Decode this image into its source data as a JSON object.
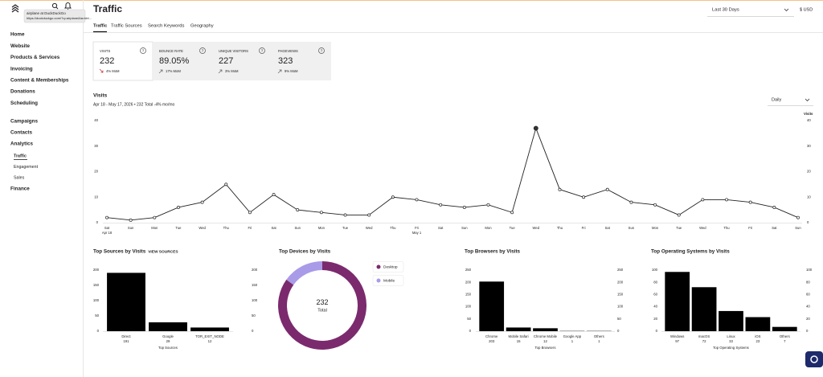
{
  "browser_tooltip": {
    "title": "airplane at DuckDuckGo",
    "url": "https://duckduckgo.com/?q=airplane&ia=kbt..."
  },
  "nav": {
    "main": [
      "Home",
      "Website",
      "Products & Services",
      "Invoicing",
      "Content & Memberships",
      "Donations",
      "Scheduling"
    ],
    "marketing": [
      "Campaigns",
      "Contacts",
      "Analytics"
    ],
    "analytics_sub": [
      "Traffic",
      "Engagement",
      "Sales"
    ],
    "analytics_active": 0,
    "footer": [
      "Finance"
    ]
  },
  "header": {
    "title": "Traffic",
    "tabs": [
      "Traffic",
      "Traffic Sources",
      "Search Keywords",
      "Geography"
    ],
    "active_tab": 0,
    "date_range": "Last 30 Days",
    "currency": "$ USD"
  },
  "metrics": [
    {
      "label": "VISITS",
      "value": "232",
      "change": "4% MoM",
      "trend": "down"
    },
    {
      "label": "BOUNCE RATE",
      "value": "89.05%",
      "change": "17% MoM",
      "trend": "up"
    },
    {
      "label": "UNIQUE VISITORS",
      "value": "227",
      "change": "3% MoM",
      "trend": "up"
    },
    {
      "label": "PAGEVIEWS",
      "value": "323",
      "change": "9% MoM",
      "trend": "up"
    }
  ],
  "chart_data": [
    {
      "type": "line",
      "title": "Visits",
      "subtitle": "Apr 18 - May 17, 2026 • 232 Total",
      "change": "-4% mo/mo",
      "interval": "Daily",
      "y2label": "Visits",
      "color": "#222222",
      "highlight_index": 18,
      "categories": [
        "Sat",
        "Sun",
        "Mon",
        "Tue",
        "Wed",
        "Thu",
        "Fri",
        "Sat",
        "Sun",
        "Mon",
        "Tue",
        "Wed",
        "Thu",
        "Fri",
        "Sat",
        "Sun",
        "Mon",
        "Tue",
        "Wed",
        "Thu",
        "Fri",
        "Sat",
        "Sun",
        "Mon",
        "Tue",
        "Wed",
        "Thu",
        "Fri",
        "Sat",
        "Sun"
      ],
      "category_dates": [
        "Apr 18",
        null,
        null,
        null,
        null,
        null,
        null,
        null,
        null,
        null,
        null,
        null,
        null,
        "May 1",
        null,
        null,
        null,
        null,
        null,
        null,
        null,
        null,
        null,
        null,
        null,
        null,
        null,
        null,
        null,
        null
      ],
      "values": [
        2,
        1,
        2,
        6,
        8,
        15,
        4,
        11,
        5,
        4,
        3,
        3,
        10,
        9,
        7,
        6,
        7,
        4,
        37,
        13,
        10,
        13,
        8,
        7,
        3,
        9,
        9,
        8,
        6,
        2
      ],
      "ylim": [
        0,
        40
      ],
      "yticks": [
        0,
        10,
        20,
        30,
        40
      ],
      "y2lim": [
        0,
        40
      ],
      "y2ticks": [
        0,
        10,
        20,
        30,
        40
      ],
      "grid": false
    },
    {
      "type": "bar",
      "title": "Top Sources by Visits",
      "link": "VIEW SOURCES",
      "xlabel": "Top Sources",
      "color": "#000000",
      "categories": [
        "Direct",
        "Google",
        "TOR_EXIT_NODE"
      ],
      "values": [
        191,
        29,
        12
      ],
      "ylim": [
        0,
        200
      ],
      "yticks": [
        0,
        50,
        100,
        150,
        200
      ],
      "y2lim": [
        0,
        200
      ],
      "y2ticks": [
        0,
        50,
        100,
        150,
        200
      ],
      "grid": false
    },
    {
      "type": "pie",
      "title": "Top Devices by Visits",
      "donut": true,
      "total": 232,
      "total_label": "Total",
      "legend": "right",
      "categories": [
        "Desktop",
        "Mobile"
      ],
      "values": [
        197,
        35
      ],
      "colors": [
        "#7b2a6e",
        "#a99be8"
      ]
    },
    {
      "type": "bar",
      "title": "Top Browsers by Visits",
      "xlabel": "Top Browsers",
      "color": "#000000",
      "categories": [
        "Chrome",
        "Mobile Safari",
        "Chrome Mobile",
        "Google App",
        "Others"
      ],
      "values": [
        203,
        15,
        12,
        1,
        1
      ],
      "ylim": [
        0,
        250
      ],
      "yticks": [
        0,
        50,
        100,
        150,
        200,
        250
      ],
      "y2lim": [
        0,
        250
      ],
      "y2ticks": [
        0,
        50,
        100,
        150,
        200,
        250
      ],
      "grid": false
    },
    {
      "type": "bar",
      "title": "Top Operating Systems by Visits",
      "xlabel": "Top Operating Systems",
      "color": "#000000",
      "categories": [
        "Windows",
        "macOS",
        "Linux",
        "iOS",
        "Others"
      ],
      "values": [
        97,
        72,
        33,
        23,
        7
      ],
      "ylim": [
        0,
        100
      ],
      "yticks": [
        0,
        20,
        40,
        60,
        80,
        100
      ],
      "y2lim": [
        0,
        100
      ],
      "y2ticks": [
        0,
        20,
        40,
        60,
        80,
        100
      ],
      "grid": false
    }
  ]
}
